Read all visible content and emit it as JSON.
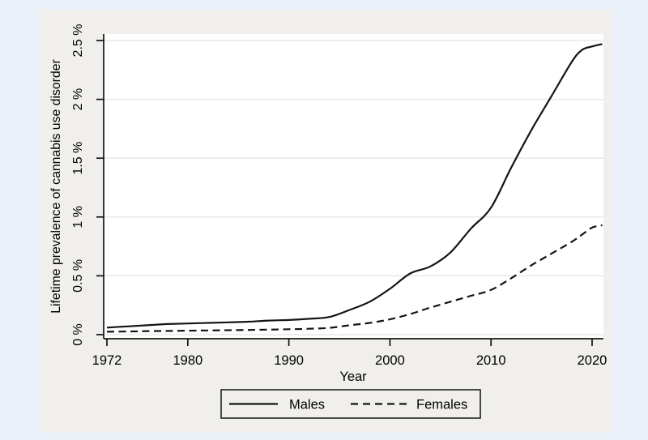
{
  "window": {
    "background": "#e9f0f8"
  },
  "figure": {
    "background": "#f0efeb",
    "plot_background": "#ffffff",
    "grid_color": "#e4e4e4",
    "axis_color": "#141414",
    "line_color": "#141414",
    "text_color": "#000000"
  },
  "chart_data": {
    "type": "line",
    "title": "",
    "xlabel": "Year",
    "ylabel": "Lifetime prevalence of cannabis use disorder",
    "xlim": [
      1971.7,
      2021.1
    ],
    "ylim": [
      -0.035,
      2.56
    ],
    "grid": "horizontal",
    "x_ticks": [
      1972,
      1980,
      1990,
      2000,
      2010,
      2020
    ],
    "y_ticks": [
      0,
      0.5,
      1,
      1.5,
      2,
      2.5
    ],
    "y_tick_labels": [
      "0 %",
      "0.5 %",
      "1 %",
      "1.5 %",
      "2 %",
      "2.5 %"
    ],
    "x": [
      1972,
      1974,
      1976,
      1978,
      1980,
      1982,
      1984,
      1986,
      1988,
      1990,
      1992,
      1994,
      1996,
      1998,
      2000,
      2002,
      2004,
      2006,
      2008,
      2010,
      2012,
      2014,
      2016,
      2018,
      2019,
      2020,
      2021
    ],
    "series": [
      {
        "name": "Males",
        "line_style": "solid",
        "values": [
          0.06,
          0.07,
          0.08,
          0.09,
          0.095,
          0.1,
          0.105,
          0.11,
          0.12,
          0.125,
          0.135,
          0.15,
          0.21,
          0.28,
          0.39,
          0.52,
          0.58,
          0.7,
          0.9,
          1.08,
          1.42,
          1.74,
          2.03,
          2.32,
          2.42,
          2.45,
          2.47
        ]
      },
      {
        "name": "Females",
        "line_style": "dashed",
        "values": [
          0.025,
          0.027,
          0.03,
          0.032,
          0.034,
          0.036,
          0.038,
          0.04,
          0.043,
          0.046,
          0.05,
          0.058,
          0.08,
          0.1,
          0.13,
          0.175,
          0.23,
          0.28,
          0.33,
          0.38,
          0.48,
          0.59,
          0.69,
          0.79,
          0.85,
          0.91,
          0.93
        ]
      }
    ],
    "legend": {
      "position": "bottom-center",
      "entries": [
        {
          "label": "Males",
          "line_style": "solid"
        },
        {
          "label": "Females",
          "line_style": "dashed"
        }
      ]
    }
  }
}
